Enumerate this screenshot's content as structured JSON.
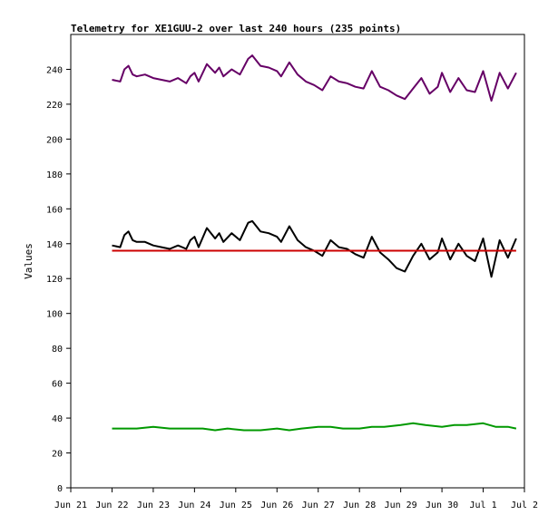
{
  "chart_data": {
    "type": "line",
    "title": "Telemetry for XE1GUU-2 over last 240 hours (235 points)",
    "xlabel": "",
    "ylabel": "Values",
    "xlim": [
      0,
      11
    ],
    "ylim": [
      0,
      260
    ],
    "grid": false,
    "x_ticks": [
      {
        "label": "Jun 21",
        "value": 0
      },
      {
        "label": "Jun 22",
        "value": 1
      },
      {
        "label": "Jun 23",
        "value": 2
      },
      {
        "label": "Jun 24",
        "value": 3
      },
      {
        "label": "Jun 25",
        "value": 4
      },
      {
        "label": "Jun 26",
        "value": 5
      },
      {
        "label": "Jun 27",
        "value": 6
      },
      {
        "label": "Jun 28",
        "value": 7
      },
      {
        "label": "Jun 29",
        "value": 8
      },
      {
        "label": "Jun 30",
        "value": 9
      },
      {
        "label": "Jul 1",
        "value": 10
      },
      {
        "label": "Jul 2",
        "value": 11
      }
    ],
    "y_ticks": [
      0,
      20,
      40,
      60,
      80,
      100,
      120,
      140,
      160,
      180,
      200,
      220,
      240
    ],
    "series": [
      {
        "color": "#660066",
        "x": [
          1.0,
          1.2,
          1.3,
          1.4,
          1.5,
          1.6,
          1.8,
          2.0,
          2.2,
          2.4,
          2.6,
          2.8,
          2.9,
          3.0,
          3.1,
          3.3,
          3.5,
          3.6,
          3.7,
          3.9,
          4.1,
          4.3,
          4.4,
          4.6,
          4.8,
          5.0,
          5.1,
          5.3,
          5.5,
          5.7,
          5.9,
          6.1,
          6.3,
          6.5,
          6.7,
          6.9,
          7.1,
          7.3,
          7.5,
          7.7,
          7.9,
          8.1,
          8.3,
          8.5,
          8.7,
          8.9,
          9.0,
          9.2,
          9.4,
          9.6,
          9.8,
          10.0,
          10.2,
          10.4,
          10.6,
          10.8
        ],
        "y": [
          234,
          233,
          240,
          242,
          237,
          236,
          237,
          235,
          234,
          233,
          235,
          232,
          236,
          238,
          233,
          243,
          238,
          241,
          236,
          240,
          237,
          246,
          248,
          242,
          241,
          239,
          236,
          244,
          237,
          233,
          231,
          228,
          236,
          233,
          232,
          230,
          229,
          239,
          230,
          228,
          225,
          223,
          229,
          235,
          226,
          230,
          238,
          227,
          235,
          228,
          227,
          239,
          222,
          238,
          229,
          238
        ]
      },
      {
        "color": "#000000",
        "x": [
          1.0,
          1.2,
          1.3,
          1.4,
          1.5,
          1.6,
          1.8,
          2.0,
          2.2,
          2.4,
          2.6,
          2.8,
          2.9,
          3.0,
          3.1,
          3.3,
          3.5,
          3.6,
          3.7,
          3.9,
          4.1,
          4.3,
          4.4,
          4.6,
          4.8,
          5.0,
          5.1,
          5.3,
          5.5,
          5.7,
          5.9,
          6.1,
          6.3,
          6.5,
          6.7,
          6.9,
          7.1,
          7.3,
          7.5,
          7.7,
          7.9,
          8.1,
          8.3,
          8.5,
          8.7,
          8.9,
          9.0,
          9.2,
          9.4,
          9.6,
          9.8,
          10.0,
          10.2,
          10.4,
          10.6,
          10.8
        ],
        "y": [
          139,
          138,
          145,
          147,
          142,
          141,
          141,
          139,
          138,
          137,
          139,
          137,
          142,
          144,
          138,
          149,
          143,
          146,
          141,
          146,
          142,
          152,
          153,
          147,
          146,
          144,
          141,
          150,
          142,
          138,
          136,
          133,
          142,
          138,
          137,
          134,
          132,
          144,
          135,
          131,
          126,
          124,
          133,
          140,
          131,
          135,
          143,
          131,
          140,
          133,
          130,
          143,
          121,
          142,
          132,
          143
        ]
      },
      {
        "color": "#cc0000",
        "x": [
          1.0,
          10.8
        ],
        "y": [
          136,
          136
        ]
      },
      {
        "color": "#009900",
        "x": [
          1.0,
          1.3,
          1.6,
          2.0,
          2.4,
          2.8,
          3.2,
          3.5,
          3.8,
          4.2,
          4.6,
          5.0,
          5.3,
          5.6,
          6.0,
          6.3,
          6.6,
          7.0,
          7.3,
          7.6,
          8.0,
          8.3,
          8.6,
          9.0,
          9.3,
          9.6,
          10.0,
          10.3,
          10.6,
          10.8
        ],
        "y": [
          34,
          34,
          34,
          35,
          34,
          34,
          34,
          33,
          34,
          33,
          33,
          34,
          33,
          34,
          35,
          35,
          34,
          34,
          35,
          35,
          36,
          37,
          36,
          35,
          36,
          36,
          37,
          35,
          35,
          34
        ]
      }
    ]
  }
}
